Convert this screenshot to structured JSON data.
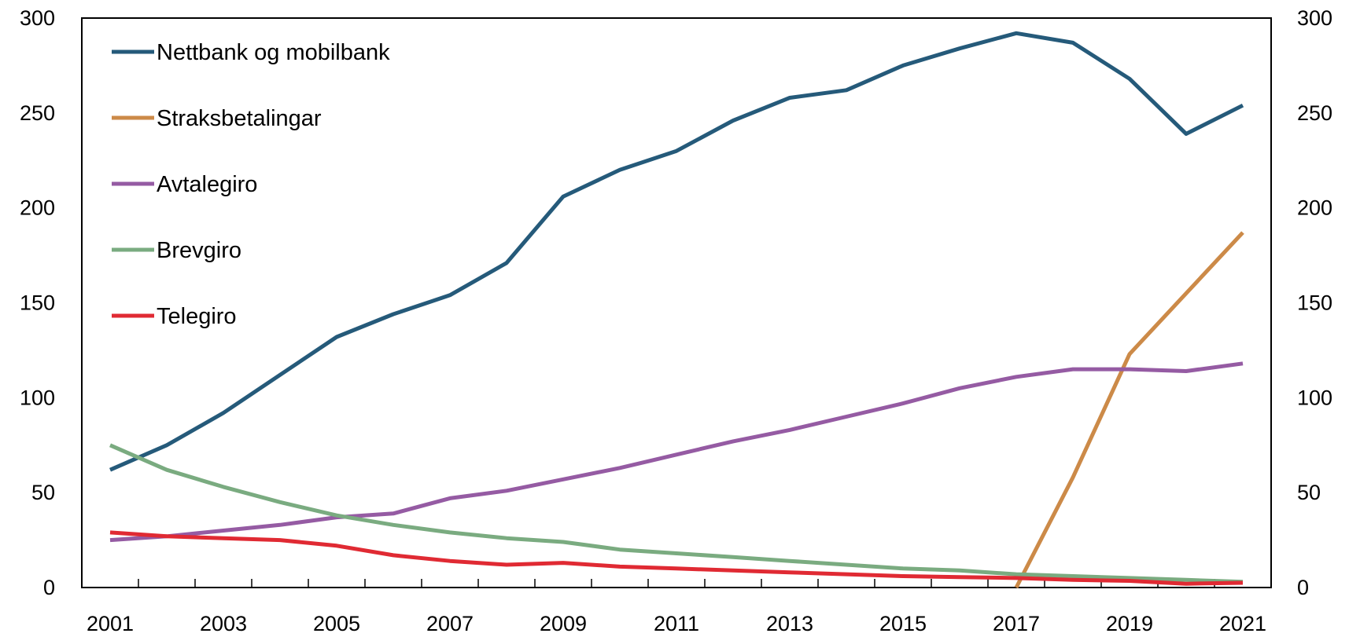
{
  "chart_data": {
    "type": "line",
    "x": [
      2001,
      2002,
      2003,
      2004,
      2005,
      2006,
      2007,
      2008,
      2009,
      2010,
      2011,
      2012,
      2013,
      2014,
      2015,
      2016,
      2017,
      2018,
      2019,
      2020,
      2021
    ],
    "x_tick_labels": [
      "2001",
      "2003",
      "2005",
      "2007",
      "2009",
      "2011",
      "2013",
      "2015",
      "2017",
      "2019",
      "2021"
    ],
    "y_tick_labels": [
      "0",
      "50",
      "100",
      "150",
      "200",
      "250",
      "300"
    ],
    "ylim": [
      0,
      300
    ],
    "y_axis_right_mirrored": true,
    "grid": false,
    "legend_position": "top-left",
    "series": [
      {
        "name": "Nettbank og mobilbank",
        "color": "#255a7a",
        "values": [
          62,
          75,
          92,
          112,
          132,
          144,
          154,
          171,
          206,
          220,
          230,
          246,
          258,
          262,
          275,
          284,
          292,
          287,
          268,
          239,
          254
        ]
      },
      {
        "name": "Straksbetalingar",
        "color": "#cc8a48",
        "values": [
          null,
          null,
          null,
          null,
          null,
          null,
          null,
          null,
          null,
          null,
          null,
          null,
          null,
          null,
          null,
          null,
          0,
          58,
          123,
          155,
          187
        ]
      },
      {
        "name": "Avtalegiro",
        "color": "#955ba3",
        "values": [
          25,
          27,
          30,
          33,
          37,
          39,
          47,
          51,
          57,
          63,
          70,
          77,
          83,
          90,
          97,
          105,
          111,
          115,
          115,
          114,
          118
        ]
      },
      {
        "name": "Brevgiro",
        "color": "#7aab80",
        "values": [
          75,
          62,
          53,
          45,
          38,
          33,
          29,
          26,
          24,
          20,
          18,
          16,
          14,
          12,
          10,
          9,
          7,
          6,
          5,
          4,
          3
        ]
      },
      {
        "name": "Telegiro",
        "color": "#e02a33",
        "values": [
          29,
          27,
          26,
          25,
          22,
          17,
          14,
          12,
          13,
          11,
          10,
          9,
          8,
          7,
          6,
          5.5,
          5,
          4,
          3.5,
          2,
          2.5
        ]
      }
    ]
  }
}
